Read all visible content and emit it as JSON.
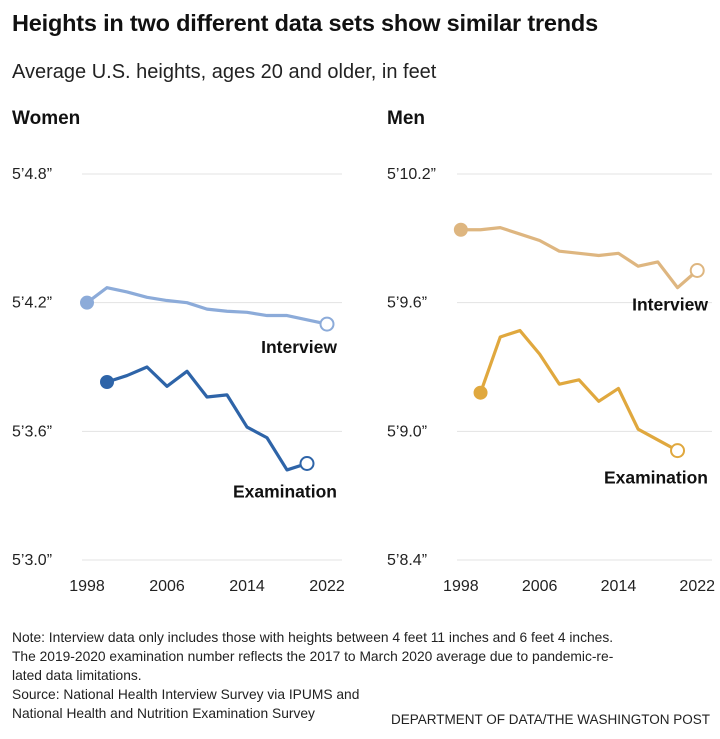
{
  "title": "Heights in two different data sets show similar trends",
  "subtitle": "Average U.S. heights, ages 20 and older, in feet",
  "colors": {
    "women_interview": "#8cabd9",
    "women_examination": "#2e64a8",
    "men_interview": "#deb680",
    "men_examination": "#e0a83e",
    "grid": "#e3e3e3"
  },
  "chart_data": [
    {
      "type": "line",
      "title": "Women",
      "y_unit": "inches",
      "ylim": [
        63,
        64.8
      ],
      "y_ticks": [
        63,
        63.6,
        64.2,
        64.8
      ],
      "y_tick_labels": [
        "5’3.0”",
        "5’3.6”",
        "5’4.2”",
        "5’4.8”"
      ],
      "x_ticks": [
        1998,
        2006,
        2014,
        2022
      ],
      "xlim": [
        1997,
        2023.5
      ],
      "grid": true,
      "series": [
        {
          "name": "Interview",
          "x": [
            1998,
            2000,
            2002,
            2004,
            2006,
            2008,
            2010,
            2012,
            2014,
            2016,
            2018,
            2020,
            2022
          ],
          "values": [
            64.2,
            64.27,
            64.25,
            64.225,
            64.21,
            64.2,
            64.17,
            64.16,
            64.155,
            64.14,
            64.14,
            64.12,
            64.1
          ]
        },
        {
          "name": "Examination",
          "x": [
            2000,
            2002,
            2004,
            2006,
            2008,
            2010,
            2012,
            2014,
            2016,
            2018,
            2020
          ],
          "values": [
            63.83,
            63.86,
            63.9,
            63.81,
            63.88,
            63.76,
            63.77,
            63.62,
            63.57,
            63.42,
            63.45
          ]
        }
      ]
    },
    {
      "type": "line",
      "title": "Men",
      "y_unit": "inches",
      "ylim": [
        68.4,
        70.2
      ],
      "y_ticks": [
        68.4,
        69.0,
        69.6,
        70.2
      ],
      "y_tick_labels": [
        "5’8.4”",
        "5’9.0”",
        "5’9.6”",
        "5’10.2”"
      ],
      "x_ticks": [
        1998,
        2006,
        2014,
        2022
      ],
      "xlim": [
        1997,
        2023.5
      ],
      "grid": true,
      "series": [
        {
          "name": "Interview",
          "x": [
            1998,
            2000,
            2002,
            2004,
            2006,
            2008,
            2010,
            2012,
            2014,
            2016,
            2018,
            2020,
            2022
          ],
          "values": [
            69.94,
            69.94,
            69.95,
            69.92,
            69.89,
            69.84,
            69.83,
            69.82,
            69.83,
            69.77,
            69.79,
            69.67,
            69.75
          ]
        },
        {
          "name": "Examination",
          "x": [
            2000,
            2002,
            2004,
            2006,
            2008,
            2010,
            2012,
            2014,
            2016,
            2018,
            2020
          ],
          "values": [
            69.18,
            69.44,
            69.47,
            69.36,
            69.22,
            69.24,
            69.14,
            69.2,
            69.01,
            68.96,
            68.91
          ]
        }
      ]
    }
  ],
  "note_lines": [
    "Note: Interview data only includes those with heights between 4 feet 11 inches and 6 feet 4 inches.",
    "The 2019-2020 examination number reflects the 2017 to March 2020 average due to pandemic-re-",
    "lated data limitations.",
    "Source: National Health Interview Survey via IPUMS and",
    "National Health and Nutrition Examination Survey"
  ],
  "credit": "DEPARTMENT OF DATA/THE WASHINGTON POST"
}
